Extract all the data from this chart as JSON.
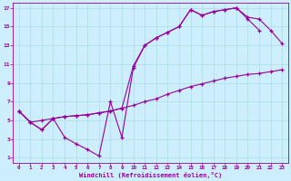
{
  "xlabel": "Windchill (Refroidissement éolien,°C)",
  "bg_color": "#cceeff",
  "line_color": "#990099",
  "grid_color": "#aadddd",
  "xlim": [
    -0.5,
    23.5
  ],
  "ylim": [
    0.5,
    17.5
  ],
  "xticks": [
    0,
    1,
    2,
    3,
    4,
    5,
    6,
    7,
    8,
    9,
    10,
    11,
    12,
    13,
    14,
    15,
    16,
    17,
    18,
    19,
    20,
    21,
    22,
    23
  ],
  "yticks": [
    1,
    3,
    5,
    7,
    9,
    11,
    13,
    15,
    17
  ],
  "series1_x": [
    0,
    1,
    2,
    3,
    4,
    5,
    6,
    7,
    8,
    9,
    10,
    11,
    12,
    13,
    14,
    15,
    16,
    17,
    18,
    19,
    20,
    21
  ],
  "series1_y": [
    6,
    4.8,
    4,
    5.2,
    3.2,
    2.5,
    1.9,
    1.2,
    7.0,
    3.2,
    10.6,
    13.0,
    13.8,
    14.4,
    15.0,
    16.8,
    16.2,
    16.6,
    16.8,
    17.0,
    15.8,
    14.6
  ],
  "series2_x": [
    0,
    1,
    2,
    3,
    4,
    5,
    6,
    7,
    8,
    9,
    10,
    11,
    12,
    13,
    14,
    15,
    16,
    17,
    18,
    19,
    20,
    21,
    22,
    23
  ],
  "series2_y": [
    6,
    4.8,
    5.0,
    5.2,
    5.4,
    5.5,
    5.6,
    5.8,
    6.0,
    6.3,
    6.6,
    7.0,
    7.3,
    7.8,
    8.2,
    8.6,
    8.9,
    9.2,
    9.5,
    9.7,
    9.9,
    10.0,
    10.2,
    10.4
  ],
  "series3_x": [
    0,
    1,
    2,
    3,
    4,
    5,
    6,
    7,
    8,
    9,
    10,
    11,
    12,
    13,
    14,
    15,
    16,
    17,
    18,
    19,
    20,
    21,
    22,
    23
  ],
  "series3_y": [
    6,
    4.8,
    4.0,
    5.2,
    5.4,
    5.5,
    5.6,
    5.8,
    6.0,
    6.3,
    10.8,
    13.0,
    13.8,
    14.4,
    15.0,
    16.8,
    16.2,
    16.6,
    16.8,
    17.0,
    16.0,
    15.8,
    14.6,
    13.2
  ]
}
